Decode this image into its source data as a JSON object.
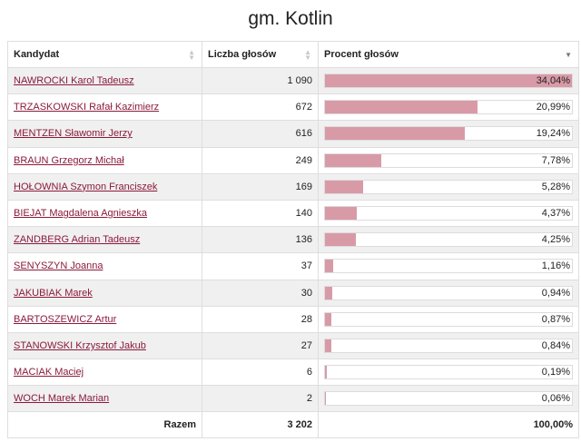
{
  "title": "gm. Kotlin",
  "table": {
    "headers": {
      "candidate": "Kandydat",
      "votes": "Liczba głosów",
      "percent": "Procent głosów"
    },
    "rows": [
      {
        "name": "NAWROCKI Karol Tadeusz",
        "votes": "1 090",
        "percent_label": "34,04%",
        "percent": 34.04
      },
      {
        "name": "TRZASKOWSKI Rafał Kazimierz",
        "votes": "672",
        "percent_label": "20,99%",
        "percent": 20.99
      },
      {
        "name": "MENTZEN Sławomir Jerzy",
        "votes": "616",
        "percent_label": "19,24%",
        "percent": 19.24
      },
      {
        "name": "BRAUN Grzegorz Michał",
        "votes": "249",
        "percent_label": "7,78%",
        "percent": 7.78
      },
      {
        "name": "HOŁOWNIA Szymon Franciszek",
        "votes": "169",
        "percent_label": "5,28%",
        "percent": 5.28
      },
      {
        "name": "BIEJAT Magdalena Agnieszka",
        "votes": "140",
        "percent_label": "4,37%",
        "percent": 4.37
      },
      {
        "name": "ZANDBERG Adrian Tadeusz",
        "votes": "136",
        "percent_label": "4,25%",
        "percent": 4.25
      },
      {
        "name": "SENYSZYN Joanna",
        "votes": "37",
        "percent_label": "1,16%",
        "percent": 1.16
      },
      {
        "name": "JAKUBIAK Marek",
        "votes": "30",
        "percent_label": "0,94%",
        "percent": 0.94
      },
      {
        "name": "BARTOSZEWICZ Artur",
        "votes": "28",
        "percent_label": "0,87%",
        "percent": 0.87
      },
      {
        "name": "STANOWSKI Krzysztof Jakub",
        "votes": "27",
        "percent_label": "0,84%",
        "percent": 0.84
      },
      {
        "name": "MACIAK Maciej",
        "votes": "6",
        "percent_label": "0,19%",
        "percent": 0.19
      },
      {
        "name": "WOCH Marek Marian",
        "votes": "2",
        "percent_label": "0,06%",
        "percent": 0.06
      }
    ],
    "footer": {
      "label": "Razem",
      "votes": "3 202",
      "percent": "100,00%"
    }
  },
  "colors": {
    "bar": "#d99aa8",
    "link": "#8b1a3c"
  },
  "bar_scale_max": 34.04
}
